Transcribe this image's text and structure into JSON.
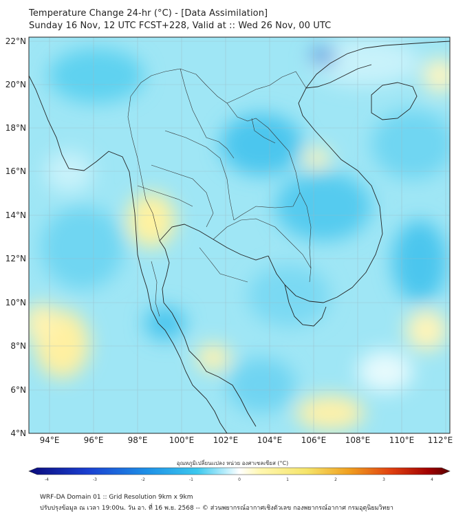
{
  "title": {
    "line1": "Temperature Change 24-hr (°C) - [Data Assimilation]",
    "line2": "Sunday 16 Nov, 12 UTC FCST+228, Valid at :: Wed 26 Nov, 00 UTC"
  },
  "axes": {
    "lat_labels": [
      "22°N",
      "20°N",
      "18°N",
      "16°N",
      "14°N",
      "12°N",
      "10°N",
      "8°N",
      "6°N",
      "4°N"
    ],
    "lon_labels": [
      "94°E",
      "96°E",
      "98°E",
      "100°E",
      "102°E",
      "104°E",
      "106°E",
      "108°E",
      "110°E",
      "112°E"
    ]
  },
  "colorbar": {
    "label": "อุณหภูมิเปลี่ยนแปลง หน่วย องศาเซลเซียส (°C)",
    "ticks": [
      "-4",
      "-3",
      "-2",
      "-1",
      "0",
      "1",
      "2",
      "3",
      "4"
    ],
    "colors": [
      "#0a0a7a",
      "#1a3fd0",
      "#1e90e6",
      "#3cc8ee",
      "#bfeffc",
      "#ffffff",
      "#fff7b0",
      "#f5e46a",
      "#f0a020",
      "#e04010",
      "#a00000",
      "#5a0000"
    ]
  },
  "footer": {
    "line1": "WRF-DA Domain 01 :: Grid Resolution 9km x 9km",
    "line2": "ปรับปรุงข้อมูล ณ เวลา 19:00น. วัน อา. ที่ 16 พ.ย. 2568 -- © ส่วนพยากรณ์อากาศเชิงตัวเลข กองพยากรณ์อากาศ กรมอุตุนิยมวิทยา"
  }
}
